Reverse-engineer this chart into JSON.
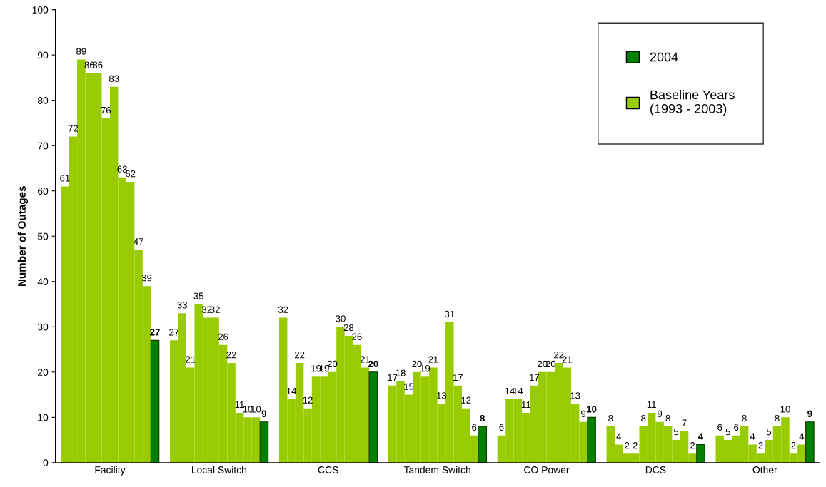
{
  "chart_data": {
    "type": "bar",
    "ylabel": "Number of Outages",
    "categories": [
      "Facility",
      "Local Switch",
      "CCS",
      "Tandem Switch",
      "CO Power",
      "DCS",
      "Other"
    ],
    "series": [
      {
        "name": "Baseline Years (1993 - 2003)",
        "color": "#99cc00",
        "values": [
          61,
          27,
          32,
          17,
          6,
          8,
          6
        ]
      },
      {
        "color": "#99cc00",
        "values": [
          72,
          33,
          14,
          18,
          14,
          4,
          5
        ]
      },
      {
        "color": "#99cc00",
        "values": [
          89,
          21,
          22,
          15,
          14,
          2,
          6
        ]
      },
      {
        "color": "#99cc00",
        "values": [
          86,
          35,
          12,
          20,
          11,
          2,
          8
        ]
      },
      {
        "color": "#99cc00",
        "values": [
          86,
          32,
          19,
          19,
          17,
          8,
          4
        ]
      },
      {
        "color": "#99cc00",
        "values": [
          76,
          32,
          19,
          21,
          20,
          11,
          2
        ]
      },
      {
        "color": "#99cc00",
        "values": [
          83,
          26,
          20,
          13,
          20,
          9,
          5
        ]
      },
      {
        "color": "#99cc00",
        "values": [
          63,
          22,
          30,
          31,
          22,
          8,
          8
        ]
      },
      {
        "color": "#99cc00",
        "values": [
          62,
          11,
          28,
          17,
          21,
          5,
          10
        ]
      },
      {
        "color": "#99cc00",
        "values": [
          47,
          10,
          26,
          12,
          13,
          7,
          2
        ]
      },
      {
        "color": "#99cc00",
        "values": [
          39,
          10,
          21,
          6,
          9,
          2,
          4
        ]
      },
      {
        "name": "2004",
        "color": "#008000",
        "values": [
          27,
          9,
          20,
          8,
          10,
          4,
          9
        ]
      }
    ],
    "ylim": [
      0,
      100
    ],
    "yticks": [
      0,
      10,
      20,
      30,
      40,
      50,
      60,
      70,
      80,
      90,
      100
    ],
    "data_labels": true,
    "grid": false,
    "legend": "top right"
  }
}
